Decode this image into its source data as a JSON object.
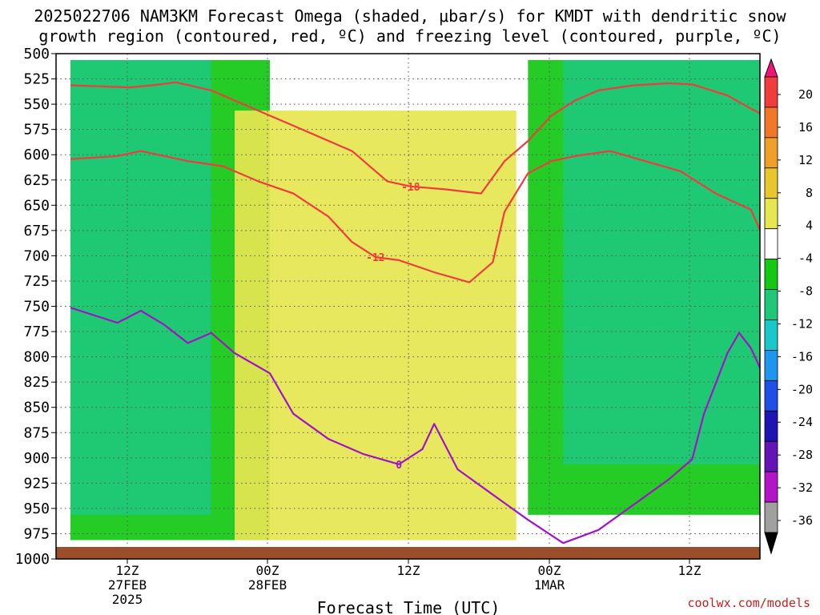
{
  "title_line1": "2025022706 NAM3KM Forecast Omega (shaded, μbar/s) for KMDT with dendritic snow",
  "title_line2": "growth region (contoured, red, ºC) and freezing level (contoured, purple, ºC)",
  "xlabel": "Forecast Time (UTC)",
  "credit": "coolwx.com/models",
  "chart_data": {
    "type": "heatmap",
    "title": "2025022706 NAM3KM Forecast Omega (shaded, μbar/s) for KMDT with dendritic snow growth region (contoured, red, ºC) and freezing level (contoured, purple, ºC)",
    "xlabel": "Forecast Time (UTC)",
    "ylabel": "",
    "y_axis": "pressure (hPa), inverted",
    "ylim": [
      1000,
      500
    ],
    "y_ticks": [
      "500",
      "525",
      "550",
      "575",
      "600",
      "625",
      "650",
      "675",
      "700",
      "725",
      "750",
      "775",
      "800",
      "825",
      "850",
      "875",
      "900",
      "925",
      "950",
      "975",
      "1000"
    ],
    "x_ticks": [
      {
        "line1": "12Z",
        "line2": "27FEB",
        "line3": "2025"
      },
      {
        "line1": "00Z",
        "line2": "28FEB",
        "line3": ""
      },
      {
        "line1": "12Z",
        "line2": "",
        "line3": ""
      },
      {
        "line1": "00Z",
        "line2": "1MAR",
        "line3": ""
      },
      {
        "line1": "12Z",
        "line2": "",
        "line3": ""
      }
    ],
    "xlim_hours": [
      0,
      60
    ],
    "grid": true,
    "colorbar": {
      "labels": [
        "20",
        "16",
        "12",
        "8",
        "4",
        "-4",
        "-8",
        "-12",
        "-16",
        "-20",
        "-24",
        "-28",
        "-32",
        "-36"
      ],
      "colors": [
        "#f0147a",
        "#f03c3c",
        "#f07828",
        "#f0a028",
        "#e6c82d",
        "#e6e650",
        "#ffffff",
        "#14c814",
        "#1ec878",
        "#19c8c8",
        "#1e96f0",
        "#1e50e6",
        "#1e14b4",
        "#6414b4",
        "#b414c8",
        "#a0a0a0",
        "#000000"
      ]
    },
    "omega_regions": [
      {
        "name": "upward-motion-early",
        "color": "#14c814",
        "hours": [
          0,
          17
        ],
        "top_hpa": 500,
        "bottom_hpa": 975
      },
      {
        "name": "upward-motion-late",
        "color": "#14c814",
        "hours": [
          39,
          60
        ],
        "top_hpa": 500,
        "bottom_hpa": 950
      },
      {
        "name": "core-early",
        "color": "#1ec878",
        "hours": [
          0,
          12
        ],
        "top_hpa": 500,
        "bottom_hpa": 950
      },
      {
        "name": "core-late",
        "color": "#1ec878",
        "hours": [
          42,
          60
        ],
        "top_hpa": 500,
        "bottom_hpa": 900
      },
      {
        "name": "sinking-midday",
        "color": "#e6e650",
        "hours": [
          14,
          38
        ],
        "top_hpa": 550,
        "bottom_hpa": 975
      }
    ],
    "dgz_contours": [
      {
        "label": "-18",
        "color": "#f03c3c",
        "points": [
          [
            0,
            525
          ],
          [
            5,
            527
          ],
          [
            7,
            525
          ],
          [
            9,
            522
          ],
          [
            12,
            530
          ],
          [
            16,
            550
          ],
          [
            20,
            570
          ],
          [
            24,
            590
          ],
          [
            27,
            620
          ],
          [
            29,
            625
          ],
          [
            32,
            628
          ],
          [
            35,
            632
          ],
          [
            37,
            600
          ],
          [
            39,
            580
          ],
          [
            41,
            555
          ],
          [
            43,
            540
          ],
          [
            45,
            530
          ],
          [
            48,
            525
          ],
          [
            51,
            523
          ],
          [
            53,
            524
          ],
          [
            56,
            535
          ],
          [
            58,
            548
          ],
          [
            60,
            560
          ]
        ]
      },
      {
        "label": "-12",
        "color": "#f03c3c",
        "points": [
          [
            0,
            598
          ],
          [
            4,
            595
          ],
          [
            6,
            590
          ],
          [
            10,
            600
          ],
          [
            13,
            605
          ],
          [
            16,
            620
          ],
          [
            19,
            632
          ],
          [
            22,
            655
          ],
          [
            24,
            680
          ],
          [
            26,
            695
          ],
          [
            28,
            698
          ],
          [
            31,
            710
          ],
          [
            34,
            720
          ],
          [
            36,
            700
          ],
          [
            37,
            650
          ],
          [
            39,
            612
          ],
          [
            41,
            600
          ],
          [
            43,
            595
          ],
          [
            46,
            590
          ],
          [
            49,
            600
          ],
          [
            52,
            610
          ],
          [
            55,
            632
          ],
          [
            58,
            648
          ],
          [
            60,
            700
          ]
        ]
      }
    ],
    "freezing_level": {
      "label": "0",
      "color": "#a014c8",
      "points": [
        [
          0,
          745
        ],
        [
          4,
          760
        ],
        [
          6,
          748
        ],
        [
          8,
          762
        ],
        [
          10,
          780
        ],
        [
          12,
          770
        ],
        [
          14,
          790
        ],
        [
          17,
          810
        ],
        [
          19,
          850
        ],
        [
          22,
          875
        ],
        [
          25,
          890
        ],
        [
          28,
          900
        ],
        [
          30,
          885
        ],
        [
          31,
          860
        ],
        [
          33,
          905
        ],
        [
          36,
          930
        ],
        [
          39,
          955
        ],
        [
          42,
          978
        ],
        [
          45,
          965
        ],
        [
          48,
          940
        ],
        [
          51,
          915
        ],
        [
          53,
          895
        ],
        [
          54,
          850
        ],
        [
          55,
          820
        ],
        [
          56,
          790
        ],
        [
          57,
          770
        ],
        [
          58,
          785
        ],
        [
          59,
          810
        ],
        [
          60,
          820
        ]
      ]
    }
  }
}
